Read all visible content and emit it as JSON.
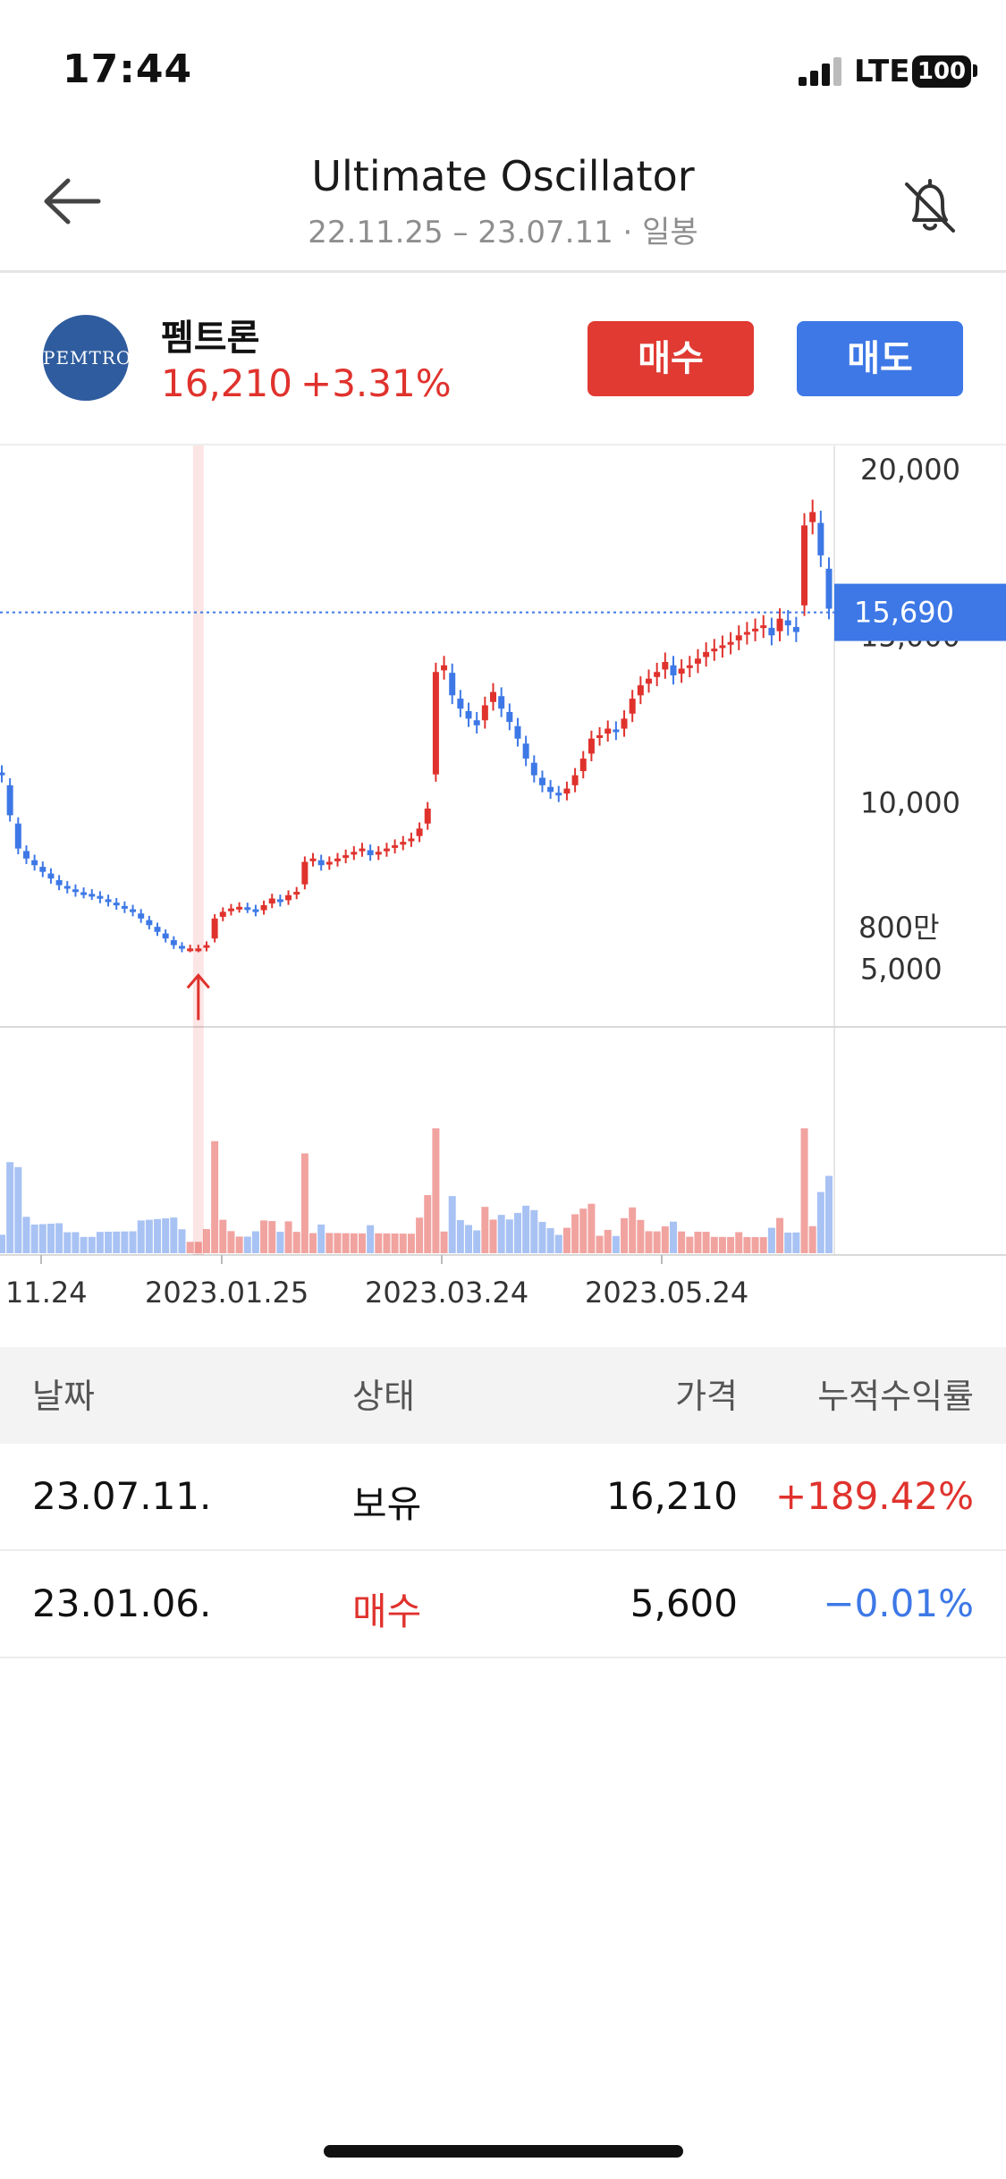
{
  "status_bar": {
    "time": "17:44",
    "network": "LTE",
    "battery": "100"
  },
  "header": {
    "title": "Ultimate Oscillator",
    "subtitle": "22.11.25 – 23.07.11 · 일봉",
    "back_icon": "arrow-left-icon",
    "bell_icon": "bell-off-icon"
  },
  "stock": {
    "logo_text": "PEMTRON",
    "name": "펨트론",
    "price": "16,210",
    "change": "+3.31%",
    "buy_label": "매수",
    "sell_label": "매도"
  },
  "colors": {
    "up": "#e0322d",
    "down": "#3d78e6",
    "accent": "#3d78e6"
  },
  "chart_data": {
    "type": "candlestick",
    "price_axis": {
      "ticks": [
        "20,000",
        "15,000",
        "10,000",
        "5,000"
      ],
      "ylim": [
        3300,
        20700
      ]
    },
    "current_price_label": "15,690",
    "volume_axis": {
      "ticks": [
        "800만"
      ]
    },
    "x_tick_labels": [
      "11.24",
      "2023.01.25",
      "2023.03.24",
      "2023.05.24"
    ],
    "signal": {
      "type": "buy",
      "date": "23.01.06",
      "price": 5600
    },
    "close_series": [
      10800,
      9600,
      8600,
      8300,
      8100,
      7900,
      7700,
      7500,
      7400,
      7300,
      7250,
      7200,
      7100,
      7000,
      6900,
      6800,
      6700,
      6500,
      6300,
      6100,
      5900,
      5700,
      5600,
      5600,
      5600,
      5700,
      6500,
      6700,
      6800,
      6850,
      6800,
      6700,
      6900,
      7100,
      7000,
      7200,
      7300,
      8200,
      8300,
      8100,
      8200,
      8300,
      8400,
      8500,
      8600,
      8400,
      8500,
      8600,
      8700,
      8800,
      8900,
      9200,
      9800,
      13900,
      14100,
      13200,
      12800,
      12500,
      12300,
      12900,
      13300,
      12800,
      12400,
      11900,
      11300,
      10800,
      10500,
      10300,
      10200,
      10400,
      10800,
      11300,
      11900,
      12000,
      12200,
      12100,
      12500,
      13100,
      13500,
      13700,
      13900,
      14200,
      13800,
      14000,
      14100,
      14300,
      14500,
      14600,
      14700,
      14800,
      15000,
      15100,
      15200,
      15300,
      15000,
      15500,
      15300,
      15100,
      18300,
      18700,
      17400,
      15800
    ]
  },
  "table": {
    "headers": {
      "date": "날짜",
      "status": "상태",
      "price": "가격",
      "return": "누적수익률"
    },
    "rows": [
      {
        "date": "23.07.11.",
        "status": "보유",
        "price": "16,210",
        "return": "+189.42%"
      },
      {
        "date": "23.01.06.",
        "status": "매수",
        "price": "5,600",
        "return": "−0.01%"
      }
    ]
  }
}
